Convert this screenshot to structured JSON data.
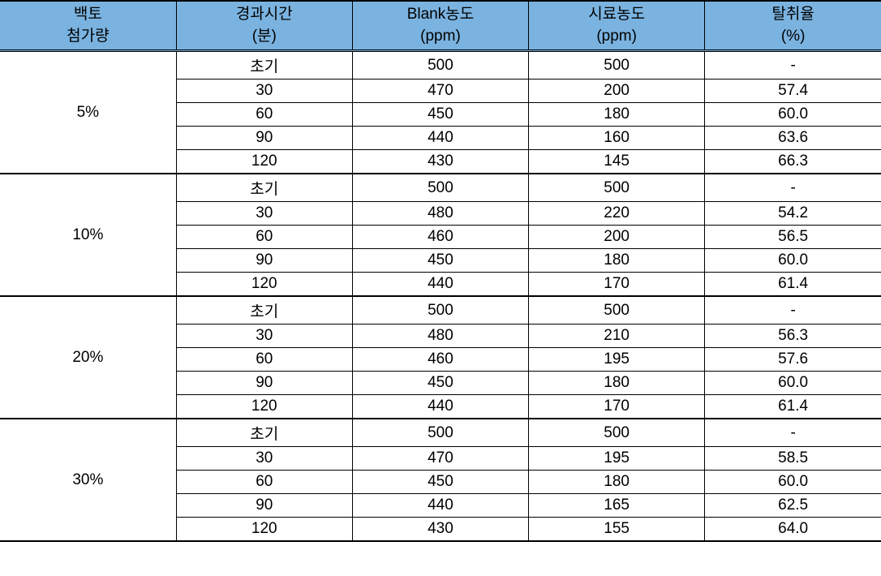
{
  "headers": {
    "col1_line1": "백토",
    "col1_line2": "첨가량",
    "col2_line1": "경과시간",
    "col2_line2": "(분)",
    "col3_line1": "Blank농도",
    "col3_line2": "(ppm)",
    "col4_line1": "시료농도",
    "col4_line2": "(ppm)",
    "col5_line1": "탈취율",
    "col5_line2": "(%)"
  },
  "table": {
    "header_bg_color": "#7bb3e0",
    "border_color": "#000000",
    "font_size": 19,
    "column_widths": [
      "20%",
      "20%",
      "20%",
      "20%",
      "20%"
    ]
  },
  "groups": [
    {
      "label": "5%",
      "rows": [
        {
          "time": "초기",
          "blank": "500",
          "sample": "500",
          "rate": "-"
        },
        {
          "time": "30",
          "blank": "470",
          "sample": "200",
          "rate": "57.4"
        },
        {
          "time": "60",
          "blank": "450",
          "sample": "180",
          "rate": "60.0"
        },
        {
          "time": "90",
          "blank": "440",
          "sample": "160",
          "rate": "63.6"
        },
        {
          "time": "120",
          "blank": "430",
          "sample": "145",
          "rate": "66.3"
        }
      ]
    },
    {
      "label": "10%",
      "rows": [
        {
          "time": "초기",
          "blank": "500",
          "sample": "500",
          "rate": "-"
        },
        {
          "time": "30",
          "blank": "480",
          "sample": "220",
          "rate": "54.2"
        },
        {
          "time": "60",
          "blank": "460",
          "sample": "200",
          "rate": "56.5"
        },
        {
          "time": "90",
          "blank": "450",
          "sample": "180",
          "rate": "60.0"
        },
        {
          "time": "120",
          "blank": "440",
          "sample": "170",
          "rate": "61.4"
        }
      ]
    },
    {
      "label": "20%",
      "rows": [
        {
          "time": "초기",
          "blank": "500",
          "sample": "500",
          "rate": "-"
        },
        {
          "time": "30",
          "blank": "480",
          "sample": "210",
          "rate": "56.3"
        },
        {
          "time": "60",
          "blank": "460",
          "sample": "195",
          "rate": "57.6"
        },
        {
          "time": "90",
          "blank": "450",
          "sample": "180",
          "rate": "60.0"
        },
        {
          "time": "120",
          "blank": "440",
          "sample": "170",
          "rate": "61.4"
        }
      ]
    },
    {
      "label": "30%",
      "rows": [
        {
          "time": "초기",
          "blank": "500",
          "sample": "500",
          "rate": "-"
        },
        {
          "time": "30",
          "blank": "470",
          "sample": "195",
          "rate": "58.5"
        },
        {
          "time": "60",
          "blank": "450",
          "sample": "180",
          "rate": "60.0"
        },
        {
          "time": "90",
          "blank": "440",
          "sample": "165",
          "rate": "62.5"
        },
        {
          "time": "120",
          "blank": "430",
          "sample": "155",
          "rate": "64.0"
        }
      ]
    }
  ]
}
